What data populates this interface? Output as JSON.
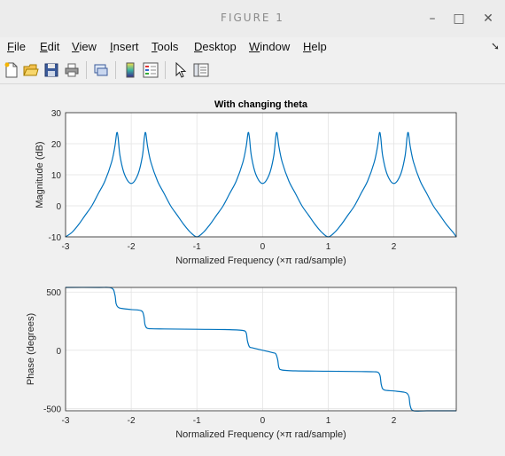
{
  "window": {
    "title": "FIGURE 1",
    "minimize": "–",
    "maximize": "□",
    "close": "✕"
  },
  "menu": {
    "items": [
      {
        "underline": "F",
        "rest": "ile"
      },
      {
        "underline": "E",
        "rest": "dit"
      },
      {
        "underline": "V",
        "rest": "iew"
      },
      {
        "underline": "I",
        "rest": "nsert"
      },
      {
        "underline": "T",
        "rest": "ools"
      },
      {
        "underline": "D",
        "rest": "esktop"
      },
      {
        "underline": "W",
        "rest": "indow"
      },
      {
        "underline": "H",
        "rest": "elp"
      }
    ],
    "dock_icon": "arrow-dock-icon"
  },
  "toolbar": {
    "icons": [
      "new-figure-icon",
      "open-file-icon",
      "save-icon",
      "print-icon",
      "link-icon",
      "colorbar-icon",
      "legend-icon",
      "pointer-icon",
      "property-editor-icon"
    ]
  },
  "chart_data": [
    {
      "type": "line",
      "title": "With changing theta",
      "xlabel": "Normalized Frequency  (×π rad/sample)",
      "ylabel": "Magnitude (dB)",
      "xlim": [
        -3,
        3
      ],
      "ylim": [
        -10,
        30
      ],
      "xticks": [
        "-3",
        "-2",
        "-1",
        "0",
        "1",
        "2"
      ],
      "yticks": [
        "-10",
        "0",
        "10",
        "20",
        "30"
      ],
      "grid": true,
      "series": [
        {
          "color": "#0072bd",
          "x": [
            -3,
            -2.9,
            -2.8,
            -2.7,
            -2.6,
            -2.5,
            -2.4,
            -2.3,
            -2.25,
            -2.22,
            -2.2,
            -2.17,
            -2.1,
            -2.0,
            -1.9,
            -1.83,
            -1.8,
            -1.78,
            -1.75,
            -1.7,
            -1.6,
            -1.5,
            -1.4,
            -1.3,
            -1.2,
            -1.1,
            -1.0,
            -0.9,
            -0.8,
            -0.7,
            -0.6,
            -0.5,
            -0.4,
            -0.3,
            -0.25,
            -0.22,
            -0.2,
            -0.17,
            -0.1,
            0,
            0.1,
            0.17,
            0.2,
            0.22,
            0.25,
            0.3,
            0.4,
            0.5,
            0.6,
            0.7,
            0.8,
            0.9,
            1.0,
            1.1,
            1.2,
            1.3,
            1.4,
            1.5,
            1.6,
            1.7,
            1.75,
            1.78,
            1.8,
            1.83,
            1.9,
            2.0,
            2.1,
            2.17,
            2.2,
            2.22,
            2.25,
            2.3,
            2.4,
            2.5,
            2.6,
            2.7,
            2.8,
            2.9,
            3.0
          ],
          "y": [
            -10,
            -8.5,
            -6,
            -3,
            0,
            4,
            8,
            14,
            19,
            23.5,
            22,
            16,
            10,
            7.2,
            10,
            16,
            22,
            23.5,
            19,
            14,
            8,
            4,
            0,
            -3,
            -6,
            -8.5,
            -10,
            -8.5,
            -6,
            -3,
            0,
            4,
            8,
            14,
            19,
            23.5,
            22,
            16,
            10,
            7.2,
            10,
            16,
            22,
            23.5,
            19,
            14,
            8,
            4,
            0,
            -3,
            -6,
            -8.5,
            -10,
            -8.5,
            -6,
            -3,
            0,
            4,
            8,
            14,
            19,
            23.5,
            22,
            16,
            10,
            7.2,
            10,
            16,
            22,
            23.5,
            19,
            14,
            8,
            4,
            0,
            -3,
            -6,
            -8.5,
            -10
          ]
        }
      ]
    },
    {
      "type": "line",
      "title": "",
      "xlabel": "Normalized Frequency  (×π rad/sample)",
      "ylabel": "Phase (degrees)",
      "xlim": [
        -3,
        3
      ],
      "ylim": [
        -520,
        540
      ],
      "xticks": [
        "-3",
        "-2",
        "-1",
        "0",
        "1",
        "2"
      ],
      "yticks": [
        "-500",
        "0",
        "500"
      ],
      "grid": true,
      "series": [
        {
          "color": "#0072bd",
          "x": [
            -3,
            -2.5,
            -2.3,
            -2.25,
            -2.23,
            -2.2,
            -2.15,
            -2.0,
            -1.85,
            -1.81,
            -1.79,
            -1.76,
            -1.7,
            -1.5,
            -1.0,
            -0.5,
            -0.3,
            -0.25,
            -0.23,
            -0.2,
            -0.15,
            0,
            0.15,
            0.2,
            0.23,
            0.25,
            0.3,
            0.5,
            1.0,
            1.5,
            1.7,
            1.76,
            1.79,
            1.81,
            1.85,
            2.0,
            2.15,
            2.2,
            2.23,
            2.25,
            2.3,
            2.5,
            3.0
          ],
          "y": [
            540,
            540,
            535,
            480,
            400,
            370,
            360,
            350,
            340,
            300,
            220,
            190,
            185,
            183,
            180,
            177,
            170,
            150,
            80,
            30,
            20,
            0,
            -20,
            -30,
            -80,
            -150,
            -170,
            -177,
            -180,
            -183,
            -185,
            -190,
            -220,
            -300,
            -340,
            -350,
            -360,
            -370,
            -400,
            -480,
            -535,
            -540,
            -540
          ]
        }
      ]
    }
  ]
}
